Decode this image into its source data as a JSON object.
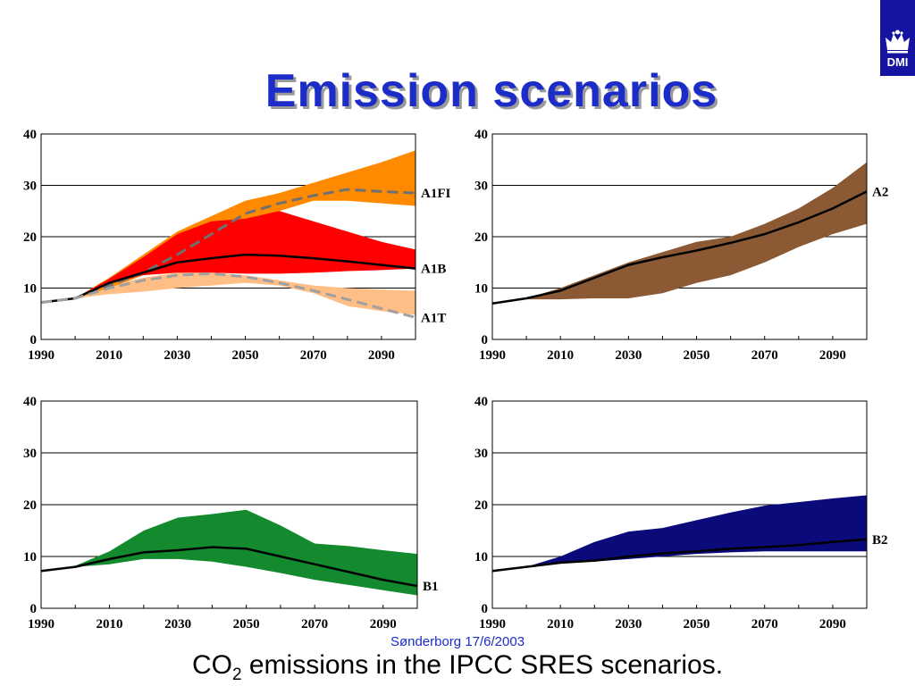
{
  "title": "Emission scenarios",
  "logo": {
    "text": "DMI",
    "icon": "crown-icon",
    "background": "#1414a0"
  },
  "footer_note": "Sønderborg 17/6/2003",
  "caption": {
    "prefix": "CO",
    "subscript": "2",
    "suffix": " emissions in the IPCC SRES scenarios."
  },
  "chart_data": [
    {
      "type": "area",
      "x": [
        1990,
        2000,
        2010,
        2020,
        2030,
        2040,
        2050,
        2060,
        2070,
        2080,
        2090,
        2100
      ],
      "xticks": [
        1990,
        2010,
        2030,
        2050,
        2070,
        2090
      ],
      "yticks": [
        0,
        10,
        20,
        30,
        40
      ],
      "xlim": [
        1990,
        2100
      ],
      "ylim": [
        0,
        40
      ],
      "grid": "horizontal",
      "bands": [
        {
          "color": "#ffbe85",
          "upper": [
            7.2,
            8.0,
            10.5,
            12.0,
            13.0,
            13.0,
            12.5,
            11.5,
            10.5,
            10.0,
            9.7,
            9.5
          ],
          "lower": [
            7.2,
            8.0,
            8.8,
            9.3,
            10.0,
            10.5,
            11.0,
            10.5,
            9.0,
            6.5,
            5.5,
            4.8
          ]
        },
        {
          "color": "#ff8a00",
          "upper": [
            7.2,
            8.0,
            12.0,
            16.5,
            21.0,
            24.0,
            27.0,
            28.5,
            30.5,
            32.5,
            34.5,
            36.8
          ],
          "lower": [
            7.2,
            8.0,
            10.0,
            12.5,
            15.0,
            18.0,
            22.0,
            25.0,
            27.0,
            27.0,
            26.5,
            26.0
          ]
        },
        {
          "color": "#ff0000",
          "upper": [
            7.2,
            8.0,
            11.8,
            16.0,
            20.5,
            23.0,
            23.5,
            25.0,
            23.0,
            21.0,
            19.0,
            17.5
          ],
          "lower": [
            7.2,
            8.0,
            10.8,
            12.5,
            13.0,
            13.0,
            12.8,
            12.8,
            13.0,
            13.3,
            13.5,
            13.8
          ]
        }
      ],
      "series": [
        {
          "name": "A1FI",
          "style": "dashed",
          "color": "#707070",
          "values": [
            7.2,
            8.0,
            10.5,
            13.0,
            16.5,
            20.5,
            24.5,
            26.5,
            28.0,
            29.2,
            28.8,
            28.5
          ]
        },
        {
          "name": "A1B",
          "style": "solid",
          "color": "#000000",
          "values": [
            7.2,
            8.0,
            11.0,
            13.0,
            15.0,
            15.8,
            16.5,
            16.3,
            15.8,
            15.2,
            14.5,
            13.8
          ]
        },
        {
          "name": "A1T",
          "style": "dashed",
          "color": "#a0a0a0",
          "values": [
            7.2,
            8.0,
            10.0,
            11.5,
            12.5,
            12.8,
            12.2,
            11.0,
            9.5,
            7.8,
            6.0,
            4.3
          ]
        }
      ]
    },
    {
      "type": "area",
      "x": [
        1990,
        2000,
        2010,
        2020,
        2030,
        2040,
        2050,
        2060,
        2070,
        2080,
        2090,
        2100
      ],
      "xticks": [
        1990,
        2010,
        2030,
        2050,
        2070,
        2090
      ],
      "yticks": [
        0,
        10,
        20,
        30,
        40
      ],
      "xlim": [
        1990,
        2100
      ],
      "ylim": [
        0,
        40
      ],
      "grid": "horizontal",
      "bands": [
        {
          "color": "#8b5a35",
          "upper": [
            7.0,
            8.0,
            10.0,
            12.5,
            15.0,
            17.0,
            19.0,
            20.0,
            22.5,
            25.5,
            29.5,
            34.5
          ],
          "lower": [
            7.0,
            7.8,
            7.8,
            8.0,
            8.0,
            9.0,
            11.0,
            12.5,
            15.0,
            18.0,
            20.5,
            22.5
          ]
        }
      ],
      "series": [
        {
          "name": "A2",
          "style": "solid",
          "color": "#000000",
          "values": [
            7.0,
            8.0,
            9.5,
            12.0,
            14.5,
            16.0,
            17.3,
            18.8,
            20.5,
            22.8,
            25.5,
            28.8
          ]
        }
      ]
    },
    {
      "type": "area",
      "x": [
        1990,
        2000,
        2010,
        2020,
        2030,
        2040,
        2050,
        2060,
        2070,
        2080,
        2090,
        2100
      ],
      "xticks": [
        1990,
        2010,
        2030,
        2050,
        2070,
        2090
      ],
      "yticks": [
        0,
        10,
        20,
        30,
        40
      ],
      "xlim": [
        1990,
        2100
      ],
      "ylim": [
        0,
        40
      ],
      "grid": "horizontal",
      "bands": [
        {
          "color": "#138a2e",
          "upper": [
            7.2,
            8.2,
            11.0,
            15.0,
            17.5,
            18.2,
            19.0,
            16.0,
            12.5,
            12.0,
            11.2,
            10.5
          ],
          "lower": [
            7.2,
            8.0,
            8.5,
            9.5,
            9.5,
            9.0,
            8.0,
            6.8,
            5.5,
            4.5,
            3.5,
            2.5
          ]
        }
      ],
      "series": [
        {
          "name": "B1",
          "style": "solid",
          "color": "#000000",
          "values": [
            7.2,
            8.0,
            9.5,
            10.8,
            11.2,
            11.8,
            11.5,
            10.0,
            8.5,
            7.0,
            5.5,
            4.3
          ]
        }
      ]
    },
    {
      "type": "area",
      "x": [
        1990,
        2000,
        2010,
        2020,
        2030,
        2040,
        2050,
        2060,
        2070,
        2080,
        2090,
        2100
      ],
      "xticks": [
        1990,
        2010,
        2030,
        2050,
        2070,
        2090
      ],
      "yticks": [
        0,
        10,
        20,
        30,
        40
      ],
      "xlim": [
        1990,
        2100
      ],
      "ylim": [
        0,
        40
      ],
      "grid": "horizontal",
      "bands": [
        {
          "color": "#0a0a7a",
          "upper": [
            7.2,
            8.0,
            10.0,
            12.8,
            14.8,
            15.5,
            17.0,
            18.5,
            19.8,
            20.5,
            21.2,
            21.8
          ],
          "lower": [
            7.2,
            8.0,
            8.8,
            9.0,
            9.5,
            10.0,
            10.5,
            10.8,
            11.0,
            11.0,
            11.0,
            11.0
          ]
        }
      ],
      "series": [
        {
          "name": "B2",
          "style": "solid",
          "color": "#000000",
          "values": [
            7.2,
            8.0,
            8.8,
            9.2,
            10.0,
            10.6,
            11.0,
            11.5,
            11.8,
            12.2,
            12.8,
            13.3
          ]
        }
      ]
    }
  ]
}
